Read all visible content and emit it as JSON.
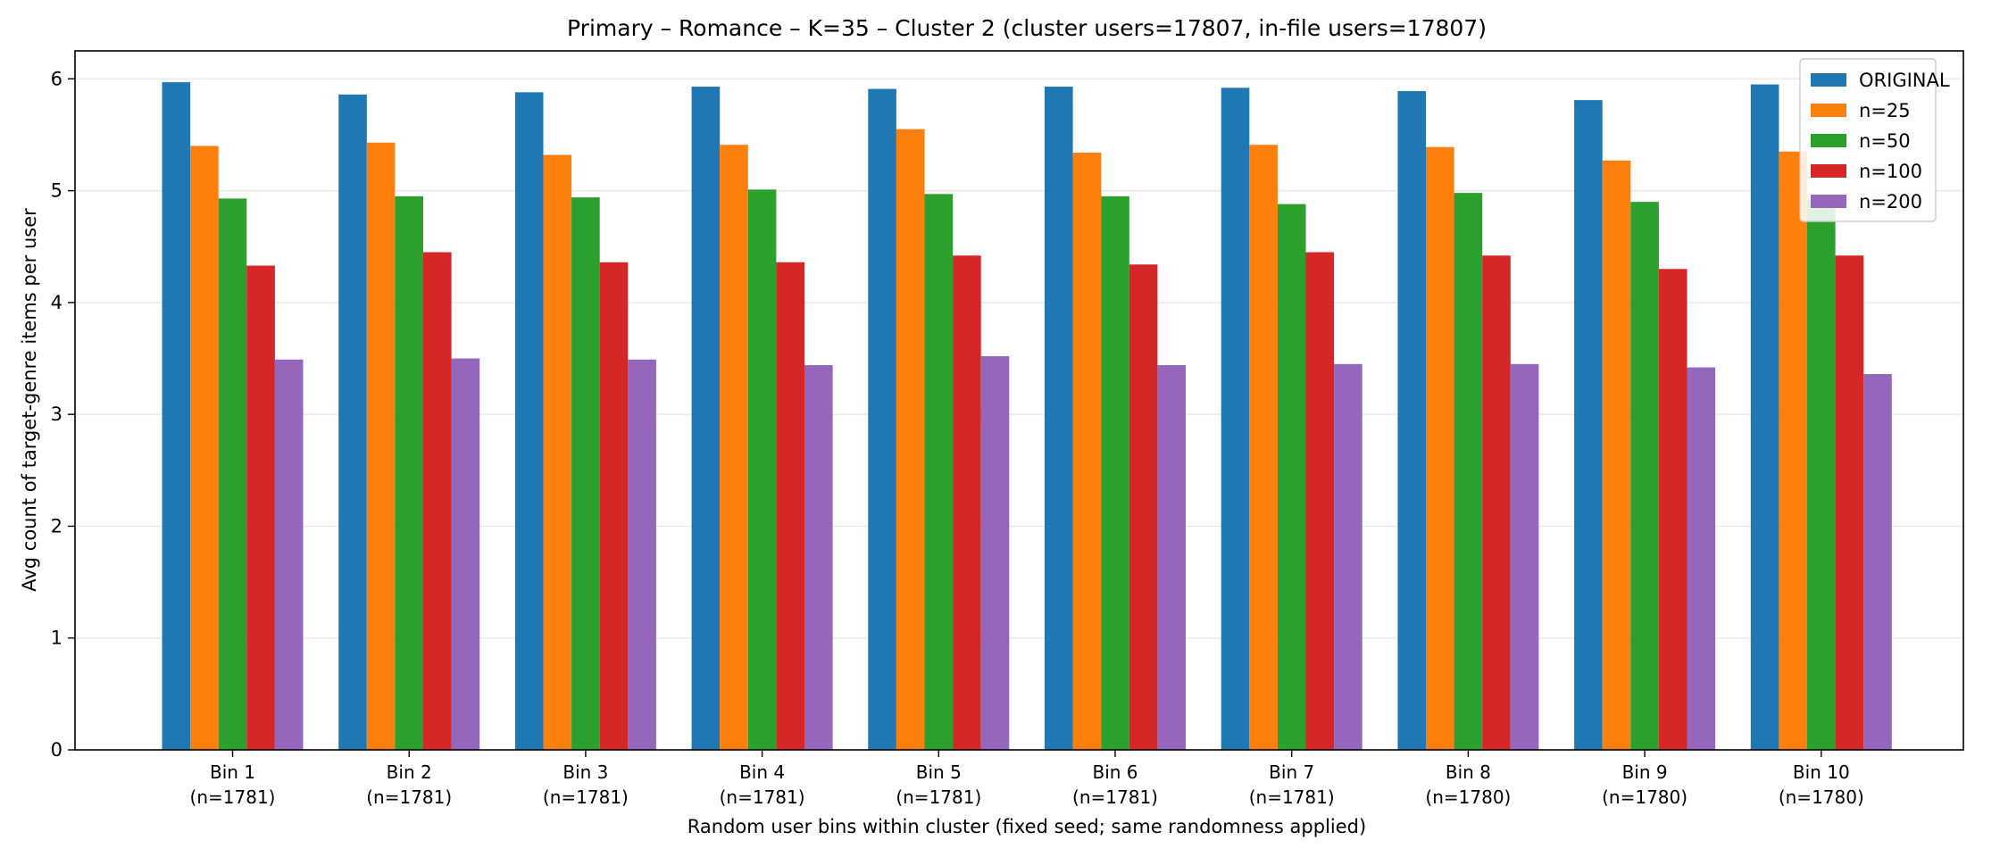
{
  "chart_data": {
    "type": "bar",
    "title": "Primary – Romance – K=35 – Cluster 2 (cluster users=17807, in-file users=17807)",
    "xlabel": "Random user bins within cluster (fixed seed; same randomness applied)",
    "ylabel": "Avg count of target-genre items per user",
    "ylim": [
      0,
      6.25
    ],
    "yticks": [
      0,
      1,
      2,
      3,
      4,
      5,
      6
    ],
    "grid": "y",
    "legend_position": "top-right",
    "categories": [
      [
        "Bin 1",
        "(n=1781)"
      ],
      [
        "Bin 2",
        "(n=1781)"
      ],
      [
        "Bin 3",
        "(n=1781)"
      ],
      [
        "Bin 4",
        "(n=1781)"
      ],
      [
        "Bin 5",
        "(n=1781)"
      ],
      [
        "Bin 6",
        "(n=1781)"
      ],
      [
        "Bin 7",
        "(n=1781)"
      ],
      [
        "Bin 8",
        "(n=1780)"
      ],
      [
        "Bin 9",
        "(n=1780)"
      ],
      [
        "Bin 10",
        "(n=1780)"
      ]
    ],
    "series": [
      {
        "name": "ORIGINAL",
        "color": "#1f77b4",
        "values": [
          5.97,
          5.86,
          5.88,
          5.93,
          5.91,
          5.93,
          5.92,
          5.89,
          5.81,
          5.95
        ]
      },
      {
        "name": "n=25",
        "color": "#ff7f0e",
        "values": [
          5.4,
          5.43,
          5.32,
          5.41,
          5.55,
          5.34,
          5.41,
          5.39,
          5.27,
          5.35
        ]
      },
      {
        "name": "n=50",
        "color": "#2ca02c",
        "values": [
          4.93,
          4.95,
          4.94,
          5.01,
          4.97,
          4.95,
          4.88,
          4.98,
          4.9,
          4.92
        ]
      },
      {
        "name": "n=100",
        "color": "#d62728",
        "values": [
          4.33,
          4.45,
          4.36,
          4.36,
          4.42,
          4.34,
          4.45,
          4.42,
          4.3,
          4.42
        ]
      },
      {
        "name": "n=200",
        "color": "#9467bd",
        "values": [
          3.49,
          3.5,
          3.49,
          3.44,
          3.52,
          3.44,
          3.45,
          3.45,
          3.42,
          3.36
        ]
      }
    ]
  }
}
